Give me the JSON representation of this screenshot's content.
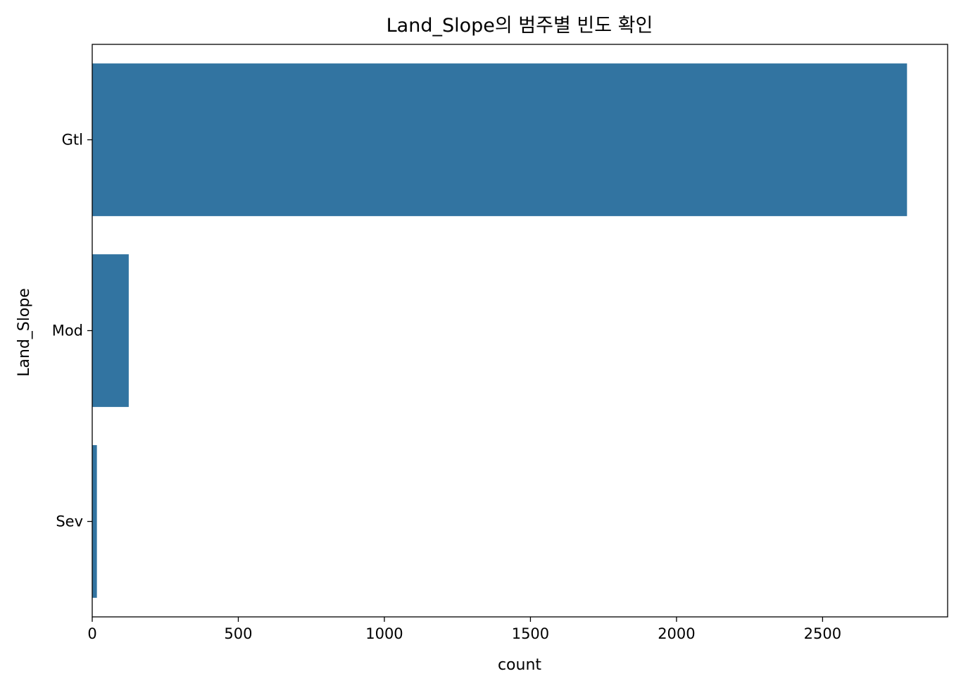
{
  "chart_data": {
    "type": "bar",
    "orientation": "horizontal",
    "title": "Land_Slope의 범주별 빈도 확인",
    "xlabel": "count",
    "ylabel": "Land_Slope",
    "categories": [
      "Gtl",
      "Mod",
      "Sev"
    ],
    "values": [
      2789,
      125,
      16
    ],
    "xlim": [
      0,
      2928
    ],
    "xticks": [
      0,
      500,
      1000,
      1500,
      2000,
      2500
    ],
    "bar_color": "#3274a1",
    "grid": false,
    "legend": "none"
  }
}
